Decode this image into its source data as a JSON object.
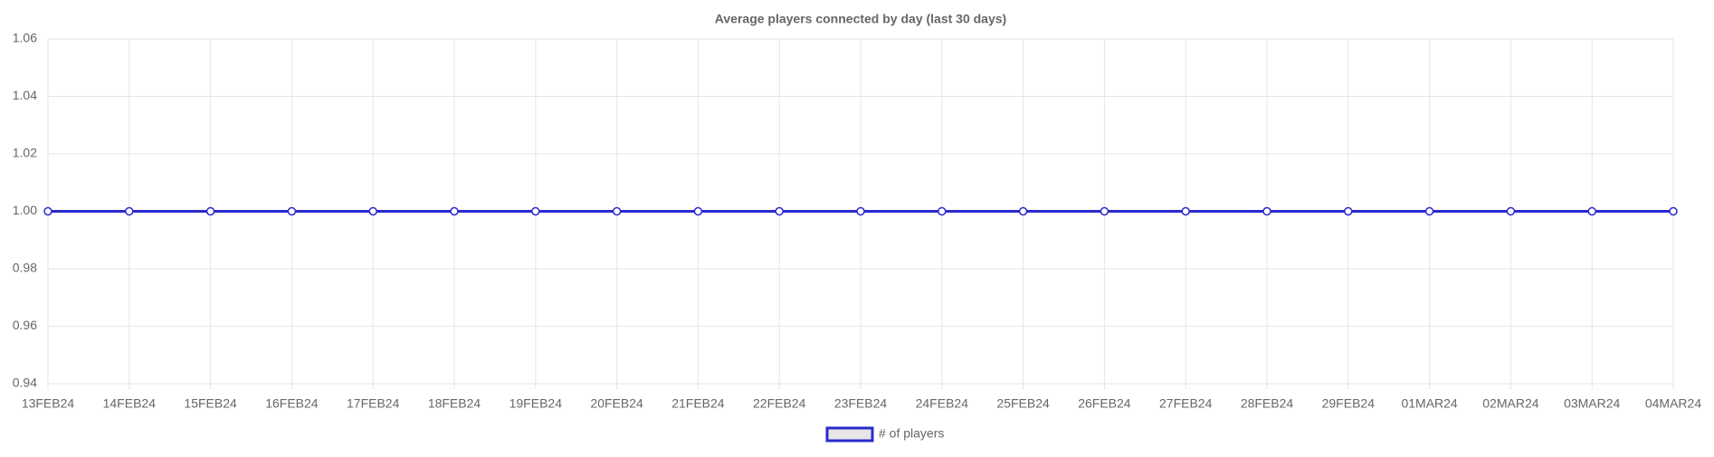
{
  "chart_data": {
    "type": "line",
    "title": "Average players connected by day (last 30 days)",
    "categories": [
      "13FEB24",
      "14FEB24",
      "15FEB24",
      "16FEB24",
      "17FEB24",
      "18FEB24",
      "19FEB24",
      "20FEB24",
      "21FEB24",
      "22FEB24",
      "23FEB24",
      "24FEB24",
      "25FEB24",
      "26FEB24",
      "27FEB24",
      "28FEB24",
      "29FEB24",
      "01MAR24",
      "02MAR24",
      "03MAR24",
      "04MAR24"
    ],
    "series": [
      {
        "name": "# of players",
        "color": "#2a2ad0",
        "fill_color": "#e6e6e6",
        "values": [
          1,
          1,
          1,
          1,
          1,
          1,
          1,
          1,
          1,
          1,
          1,
          1,
          1,
          1,
          1,
          1,
          1,
          1,
          1,
          1,
          1
        ]
      }
    ],
    "ylim": [
      0.94,
      1.06
    ],
    "yticks": [
      0.94,
      0.96,
      0.98,
      {
        "value": 1,
        "label": "1.00"
      },
      1.02,
      1.04,
      1.06
    ],
    "grid": true,
    "legend": "bottom"
  }
}
